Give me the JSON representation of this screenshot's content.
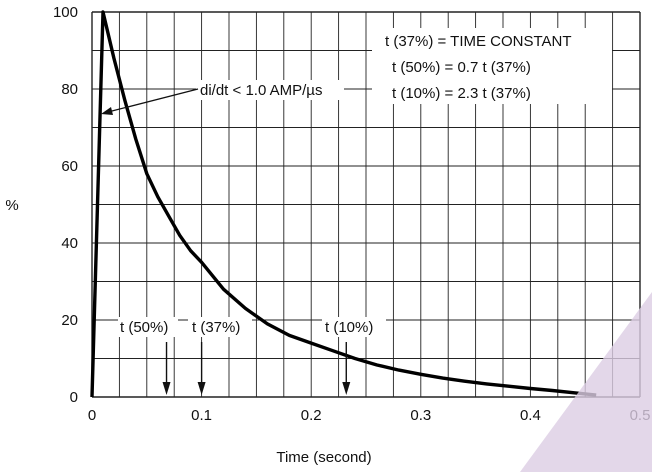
{
  "chart_data": {
    "type": "line",
    "xlabel": "Time (second)",
    "ylabel": "%",
    "xlim": [
      0,
      0.5
    ],
    "ylim": [
      0,
      100
    ],
    "xticks": [
      "0",
      "0.1",
      "0.2",
      "0.3",
      "0.4",
      "0.5"
    ],
    "yticks": [
      "0",
      "20",
      "40",
      "60",
      "80",
      "100"
    ],
    "grid": true,
    "series": [
      {
        "x": [
          0,
          0.01,
          0.02,
          0.03,
          0.04,
          0.05,
          0.06,
          0.07,
          0.08,
          0.09,
          0.1,
          0.12,
          0.14,
          0.16,
          0.18,
          0.2,
          0.22,
          0.24,
          0.26,
          0.28,
          0.3,
          0.32,
          0.34,
          0.36,
          0.38,
          0.4,
          0.42,
          0.44,
          0.46
        ],
        "y": [
          0,
          100,
          88,
          77,
          67,
          58,
          52,
          47,
          42,
          38,
          35,
          28,
          23,
          19,
          16,
          14,
          12,
          10,
          8.3,
          7,
          5.9,
          4.9,
          4.1,
          3.4,
          2.8,
          2.2,
          1.7,
          1.1,
          0.5
        ]
      }
    ],
    "annotations": {
      "slope_label": "di/dt < 1.0 AMP/µs",
      "box_lines": [
        "t (37%) = TIME CONSTANT",
        "t (50%) = 0.7 t (37%)",
        "t (10%) = 2.3 t (37%)"
      ],
      "markers": [
        {
          "label": "t (50%)",
          "x": 0.068
        },
        {
          "label": "t (37%)",
          "x": 0.1
        },
        {
          "label": "t (10%)",
          "x": 0.232
        }
      ]
    }
  }
}
